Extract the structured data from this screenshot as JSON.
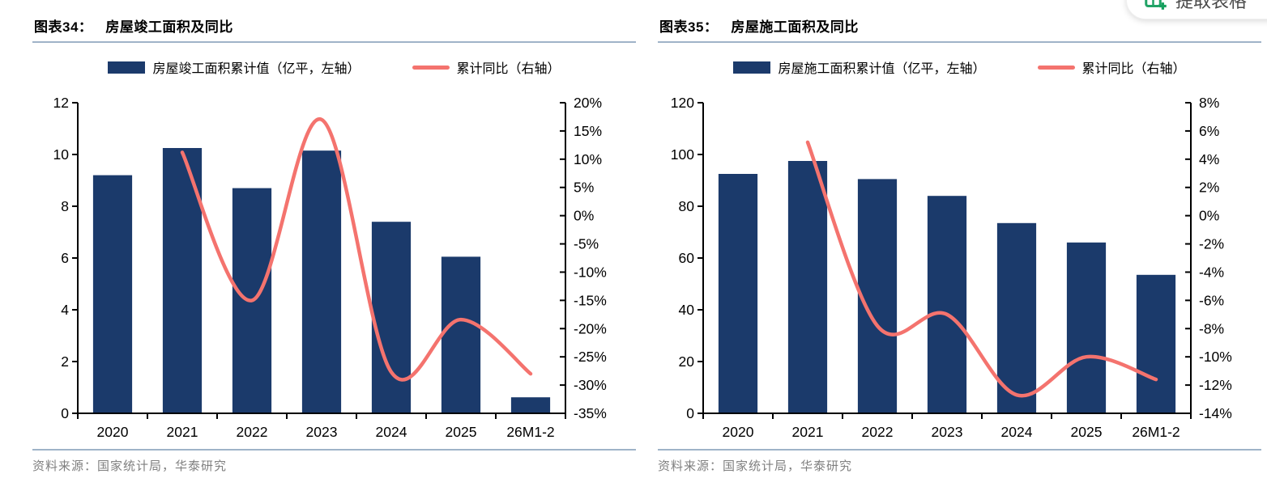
{
  "extract_button": {
    "label": "提取表格",
    "icon": "table-extract-icon",
    "icon_color": "#21A366"
  },
  "charts": [
    {
      "title_prefix": "图表34：",
      "title": "房屋竣工面积及同比",
      "source": "资料来源：国家统计局，华泰研究",
      "colors": {
        "bar": "#1B3A6B",
        "line": "#F4736E",
        "rule": "#9FB3C8",
        "axis": "#000000"
      },
      "legend": [
        {
          "type": "bar",
          "label": "房屋竣工面积累计值（亿平，左轴）"
        },
        {
          "type": "line",
          "label": "累计同比（右轴）"
        }
      ],
      "chart_data": {
        "type": "bar+line",
        "categories": [
          "2020",
          "2021",
          "2022",
          "2023",
          "2024",
          "2025",
          "26M1-2"
        ],
        "series": [
          {
            "name": "房屋竣工面积累计值（亿平，左轴）",
            "type": "bar",
            "axis": "left",
            "values": [
              9.2,
              10.25,
              8.7,
              10.15,
              7.4,
              6.05,
              0.62
            ]
          },
          {
            "name": "累计同比（右轴）",
            "type": "line",
            "axis": "right",
            "values": [
              null,
              11.2,
              -15.0,
              17.0,
              -27.7,
              -18.4,
              -28.0
            ]
          }
        ],
        "left_axis": {
          "min": 0,
          "max": 12,
          "step": 2,
          "ticks": [
            "12",
            "10",
            "8",
            "6",
            "4",
            "2",
            "0"
          ]
        },
        "right_axis": {
          "min": -35,
          "max": 20,
          "step": 5,
          "suffix": "%",
          "ticks": [
            "20%",
            "15%",
            "10%",
            "5%",
            "0%",
            "-5%",
            "-10%",
            "-15%",
            "-20%",
            "-25%",
            "-30%",
            "-35%"
          ]
        },
        "grid": false,
        "legend_position": "top"
      }
    },
    {
      "title_prefix": "图表35：",
      "title": "房屋施工面积及同比",
      "source": "资料来源：国家统计局，华泰研究",
      "colors": {
        "bar": "#1B3A6B",
        "line": "#F4736E",
        "rule": "#9FB3C8",
        "axis": "#000000"
      },
      "legend": [
        {
          "type": "bar",
          "label": "房屋施工面积累计值（亿平，左轴）"
        },
        {
          "type": "line",
          "label": "累计同比（右轴）"
        }
      ],
      "chart_data": {
        "type": "bar+line",
        "categories": [
          "2020",
          "2021",
          "2022",
          "2023",
          "2024",
          "2025",
          "26M1-2"
        ],
        "series": [
          {
            "name": "房屋施工面积累计值（亿平，左轴）",
            "type": "bar",
            "axis": "left",
            "values": [
              92.5,
              97.5,
              90.5,
              84.0,
              73.5,
              66.0,
              53.5
            ]
          },
          {
            "name": "累计同比（右轴）",
            "type": "line",
            "axis": "right",
            "values": [
              null,
              5.2,
              -7.8,
              -7.0,
              -12.7,
              -10.0,
              -11.6
            ]
          }
        ],
        "left_axis": {
          "min": 0,
          "max": 120,
          "step": 20,
          "ticks": [
            "120",
            "100",
            "80",
            "60",
            "40",
            "20",
            "0"
          ]
        },
        "right_axis": {
          "min": -14,
          "max": 8,
          "step": 2,
          "suffix": "%",
          "ticks": [
            "8%",
            "6%",
            "4%",
            "2%",
            "0%",
            "-2%",
            "-4%",
            "-6%",
            "-8%",
            "-10%",
            "-12%",
            "-14%"
          ]
        },
        "grid": false,
        "legend_position": "top"
      }
    }
  ]
}
